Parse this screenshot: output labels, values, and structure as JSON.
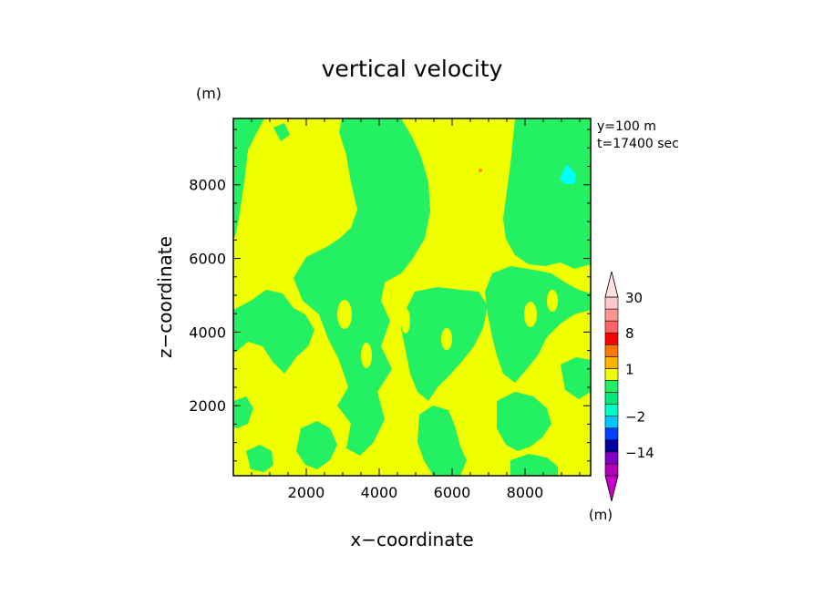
{
  "chart_data": {
    "type": "heatmap",
    "title": "vertical velocity",
    "xlabel": "x−coordinate",
    "ylabel": "z−coordinate",
    "y_unit": "(m)",
    "colorbar_unit": "(m)",
    "xlim": [
      0,
      9800
    ],
    "ylim": [
      100,
      9800
    ],
    "xticks": [
      2000,
      4000,
      6000,
      8000
    ],
    "yticks": [
      2000,
      4000,
      6000,
      8000
    ],
    "xtick_labels": [
      "2000",
      "4000",
      "6000",
      "8000"
    ],
    "ytick_labels": [
      "2000",
      "4000",
      "6000",
      "8000"
    ],
    "annotations": [
      "y=100  m",
      "t=17400 sec"
    ],
    "colorbar": {
      "levels": [
        -30,
        -22,
        -14,
        -8,
        -4,
        -2,
        -1,
        -0.5,
        0.5,
        1,
        2,
        4,
        8,
        14,
        22,
        30
      ],
      "labels": [
        {
          "value": 30,
          "text": "30"
        },
        {
          "value": 8,
          "text": "8"
        },
        {
          "value": 1,
          "text": "1"
        },
        {
          "value": -2,
          "text": "−2"
        },
        {
          "value": -14,
          "text": "−14"
        }
      ],
      "colors": [
        "#b400b4",
        "#8000c8",
        "#0000a0",
        "#0040ff",
        "#00c8ff",
        "#00ffc8",
        "#00e87a",
        "#24f064",
        "#f0ff00",
        "#ffb400",
        "#ff7800",
        "#ff0000",
        "#ff6464",
        "#ff9696",
        "#ffc8c8"
      ],
      "extend_min_color": "#c800c8",
      "extend_max_color": "#ffe0e0"
    },
    "field_colors": {
      "negative": "#24f064",
      "positive": "#f0ff00",
      "strong_negative": "#00ffff",
      "strong_positive": "#ff8c00"
    }
  }
}
